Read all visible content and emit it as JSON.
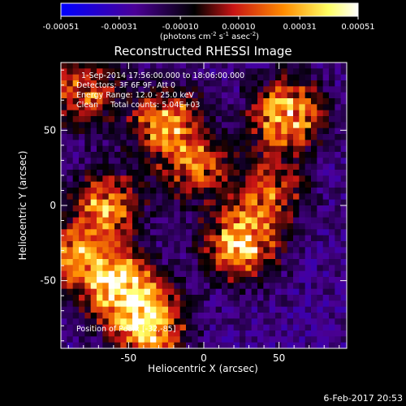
{
  "colorbar": {
    "tick_labels": [
      "-0.00051",
      "-0.00031",
      "-0.00010",
      "0.00010",
      "0.00031",
      "0.00051"
    ],
    "tick_values": [
      -0.00051,
      -0.00031,
      -0.0001,
      0.0001,
      0.00031,
      0.00051
    ],
    "range": [
      -0.00051,
      0.00051
    ],
    "units": "(photons cm",
    "units_exp1": "-2",
    "units_mid": " s",
    "units_exp2": "-1",
    "units_end": " asec",
    "units_exp3": "-2",
    "units_close": ")",
    "colors": [
      "#0000ff",
      "#4b0096",
      "#000000",
      "#c81414",
      "#ff8c00",
      "#ffff64",
      "#ffffff"
    ]
  },
  "chart_data": {
    "type": "heatmap",
    "title": "Reconstructed RHESSI Image",
    "xlabel": "Heliocentric X (arcsec)",
    "ylabel": "Heliocentric Y (arcsec)",
    "xlim": [
      -95,
      95
    ],
    "ylim": [
      -95,
      95
    ],
    "x_ticks": [
      -50,
      0,
      50
    ],
    "y_ticks": [
      50,
      0,
      -50
    ],
    "x_tick_labels": [
      "-50",
      "0",
      "50"
    ],
    "y_tick_labels": [
      "50",
      "0",
      "-50"
    ],
    "grid": false,
    "info_lines": [
      "1-Sep-2014 17:56:00.000 to 18:06:00.000",
      "Detectors: 3F 6F 9F, Att 0",
      "Energy Range: 12.0 - 25.0 keV",
      "Clean     Total counts: 5.04E+03"
    ],
    "peak_label": "Position of Peak: [-32,-85]",
    "peak_position": [
      -32,
      -85
    ],
    "sources": [
      {
        "x": -55,
        "y": -55,
        "peak": 0.00051
      },
      {
        "x": -35,
        "y": -80,
        "peak": 0.00048
      },
      {
        "x": 25,
        "y": -25,
        "peak": 0.0005
      },
      {
        "x": 55,
        "y": 60,
        "peak": 0.00048
      },
      {
        "x": -25,
        "y": 55,
        "peak": 0.00036
      },
      {
        "x": -65,
        "y": 0,
        "peak": 0.00034
      },
      {
        "x": -80,
        "y": 75,
        "peak": 0.00025
      },
      {
        "x": -85,
        "y": -35,
        "peak": 0.0003
      },
      {
        "x": 45,
        "y": 10,
        "peak": 0.00018
      },
      {
        "x": -5,
        "y": 25,
        "peak": 0.0002
      }
    ]
  },
  "footer": {
    "timestamp": "6-Feb-2017 20:53"
  }
}
